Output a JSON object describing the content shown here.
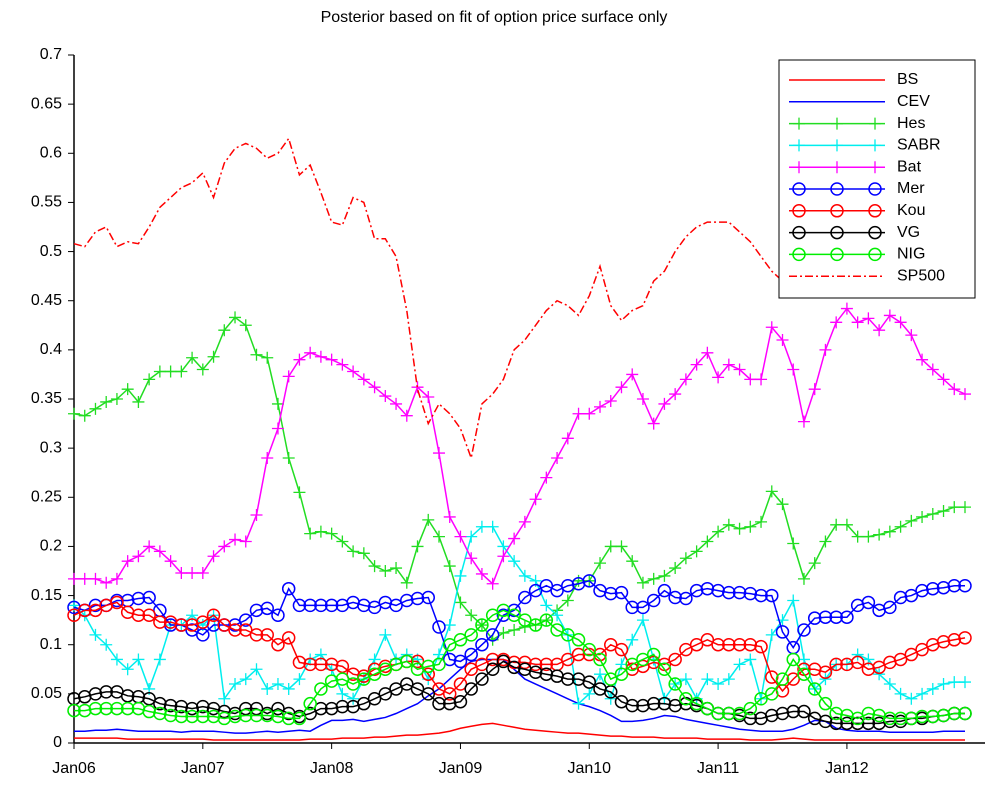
{
  "chart_data": {
    "type": "line",
    "title": "Posterior based on fit of option price surface only",
    "categories": [
      "Jan06",
      null,
      null,
      null,
      null,
      null,
      null,
      null,
      null,
      null,
      null,
      null,
      "Jan07",
      null,
      null,
      null,
      null,
      null,
      null,
      null,
      null,
      null,
      null,
      null,
      "Jan08",
      null,
      null,
      null,
      null,
      null,
      null,
      null,
      null,
      null,
      null,
      null,
      "Jan09",
      null,
      null,
      null,
      null,
      null,
      null,
      null,
      null,
      null,
      null,
      null,
      "Jan10",
      null,
      null,
      null,
      null,
      null,
      null,
      null,
      null,
      null,
      null,
      null,
      "Jan11",
      null,
      null,
      null,
      null,
      null,
      null,
      null,
      null,
      null,
      null,
      null,
      "Jan12",
      null,
      null,
      null,
      null,
      null,
      null,
      null,
      null,
      null,
      null,
      null
    ],
    "ylim": [
      0,
      0.7
    ],
    "yticks": [
      0,
      0.05,
      0.1,
      0.15,
      0.2,
      0.25,
      0.3,
      0.35,
      0.4,
      0.45,
      0.5,
      0.55,
      0.6,
      0.65,
      0.7
    ],
    "legend": "upper right",
    "series": [
      {
        "name": "BS",
        "color": "#ff0000",
        "marker": "none",
        "line": "solid",
        "values": [
          0.005,
          0.005,
          0.005,
          0.005,
          0.005,
          0.004,
          0.004,
          0.004,
          0.004,
          0.004,
          0.004,
          0.004,
          0.004,
          0.003,
          0.003,
          0.003,
          0.003,
          0.003,
          0.003,
          0.003,
          0.003,
          0.003,
          0.004,
          0.004,
          0.004,
          0.005,
          0.005,
          0.005,
          0.006,
          0.006,
          0.007,
          0.008,
          0.008,
          0.009,
          0.01,
          0.012,
          0.015,
          0.017,
          0.019,
          0.02,
          0.018,
          0.016,
          0.014,
          0.013,
          0.012,
          0.011,
          0.01,
          0.01,
          0.009,
          0.008,
          0.007,
          0.007,
          0.006,
          0.006,
          0.006,
          0.005,
          0.005,
          0.005,
          0.005,
          0.004,
          0.004,
          0.004,
          0.004,
          0.003,
          0.003,
          0.003,
          0.004,
          0.005,
          0.004,
          0.003,
          0.003,
          0.003,
          0.003,
          0.003,
          0.003,
          0.003,
          0.003,
          0.003,
          0.003,
          0.003,
          0.003,
          0.003,
          0.003,
          0.003
        ]
      },
      {
        "name": "CEV",
        "color": "#0000ff",
        "marker": "none",
        "line": "solid",
        "values": [
          0.012,
          0.012,
          0.013,
          0.013,
          0.014,
          0.013,
          0.012,
          0.012,
          0.012,
          0.012,
          0.011,
          0.012,
          0.012,
          0.012,
          0.011,
          0.01,
          0.01,
          0.011,
          0.012,
          0.011,
          0.012,
          0.013,
          0.012,
          0.018,
          0.023,
          0.023,
          0.024,
          0.022,
          0.024,
          0.026,
          0.03,
          0.035,
          0.04,
          0.048,
          0.055,
          0.065,
          0.075,
          0.083,
          0.085,
          0.085,
          0.085,
          0.075,
          0.065,
          0.06,
          0.055,
          0.05,
          0.045,
          0.04,
          0.037,
          0.033,
          0.028,
          0.022,
          0.022,
          0.023,
          0.025,
          0.028,
          0.027,
          0.024,
          0.022,
          0.02,
          0.018,
          0.016,
          0.014,
          0.013,
          0.012,
          0.012,
          0.012,
          0.014,
          0.018,
          0.023,
          0.022,
          0.015,
          0.013,
          0.012,
          0.012,
          0.012,
          0.011,
          0.011,
          0.011,
          0.011,
          0.011,
          0.012,
          0.012,
          0.012
        ]
      },
      {
        "name": "Hes",
        "color": "#22dd22",
        "marker": "plus",
        "line": "solid",
        "values": [
          0.335,
          0.333,
          0.34,
          0.347,
          0.35,
          0.36,
          0.347,
          0.37,
          0.378,
          0.378,
          0.378,
          0.392,
          0.38,
          0.393,
          0.42,
          0.433,
          0.425,
          0.395,
          0.392,
          0.345,
          0.29,
          0.255,
          0.213,
          0.215,
          0.213,
          0.205,
          0.195,
          0.193,
          0.18,
          0.175,
          0.178,
          0.163,
          0.2,
          0.227,
          0.21,
          0.18,
          0.143,
          0.13,
          0.12,
          0.105,
          0.112,
          0.115,
          0.118,
          0.12,
          0.125,
          0.135,
          0.145,
          0.165,
          0.165,
          0.183,
          0.2,
          0.2,
          0.185,
          0.163,
          0.167,
          0.17,
          0.178,
          0.188,
          0.195,
          0.205,
          0.215,
          0.222,
          0.218,
          0.22,
          0.225,
          0.256,
          0.243,
          0.203,
          0.167,
          0.183,
          0.205,
          0.222,
          0.222,
          0.21,
          0.21,
          0.212,
          0.215,
          0.22,
          0.226,
          0.23,
          0.233,
          0.236,
          0.24,
          0.24
        ]
      },
      {
        "name": "SABR",
        "color": "#00eeee",
        "marker": "plus",
        "line": "solid",
        "values": [
          0.14,
          0.13,
          0.11,
          0.1,
          0.085,
          0.075,
          0.085,
          0.055,
          0.085,
          0.12,
          0.12,
          0.13,
          0.12,
          0.13,
          0.045,
          0.06,
          0.065,
          0.075,
          0.055,
          0.06,
          0.055,
          0.065,
          0.085,
          0.09,
          0.075,
          0.05,
          0.045,
          0.065,
          0.085,
          0.11,
          0.085,
          0.09,
          0.085,
          0.065,
          0.09,
          0.12,
          0.17,
          0.21,
          0.22,
          0.22,
          0.2,
          0.185,
          0.17,
          0.165,
          0.14,
          0.13,
          0.11,
          0.04,
          0.05,
          0.07,
          0.045,
          0.08,
          0.105,
          0.125,
          0.085,
          0.045,
          0.06,
          0.065,
          0.045,
          0.065,
          0.06,
          0.065,
          0.08,
          0.085,
          0.045,
          0.11,
          0.125,
          0.145,
          0.085,
          0.055,
          0.065,
          0.08,
          0.08,
          0.09,
          0.085,
          0.07,
          0.06,
          0.05,
          0.045,
          0.05,
          0.055,
          0.06,
          0.062,
          0.062
        ]
      },
      {
        "name": "Bat",
        "color": "#ff00ff",
        "marker": "plus",
        "line": "solid",
        "values": [
          0.167,
          0.167,
          0.167,
          0.163,
          0.167,
          0.185,
          0.19,
          0.2,
          0.195,
          0.185,
          0.173,
          0.173,
          0.173,
          0.19,
          0.2,
          0.207,
          0.205,
          0.232,
          0.29,
          0.32,
          0.373,
          0.39,
          0.397,
          0.393,
          0.39,
          0.385,
          0.378,
          0.37,
          0.362,
          0.353,
          0.345,
          0.333,
          0.362,
          0.352,
          0.295,
          0.23,
          0.21,
          0.188,
          0.172,
          0.162,
          0.19,
          0.208,
          0.225,
          0.248,
          0.27,
          0.29,
          0.31,
          0.335,
          0.335,
          0.342,
          0.348,
          0.362,
          0.375,
          0.35,
          0.325,
          0.345,
          0.355,
          0.37,
          0.385,
          0.397,
          0.372,
          0.385,
          0.38,
          0.37,
          0.37,
          0.423,
          0.41,
          0.38,
          0.327,
          0.36,
          0.4,
          0.428,
          0.442,
          0.428,
          0.432,
          0.42,
          0.435,
          0.428,
          0.415,
          0.39,
          0.38,
          0.37,
          0.36,
          0.355
        ]
      },
      {
        "name": "Mer",
        "color": "#0000ff",
        "marker": "circle",
        "line": "solid",
        "values": [
          0.138,
          0.135,
          0.14,
          0.14,
          0.145,
          0.145,
          0.147,
          0.148,
          0.135,
          0.12,
          0.12,
          0.115,
          0.11,
          0.12,
          0.12,
          0.12,
          0.125,
          0.135,
          0.137,
          0.13,
          0.157,
          0.14,
          0.14,
          0.14,
          0.14,
          0.14,
          0.143,
          0.14,
          0.138,
          0.143,
          0.14,
          0.145,
          0.147,
          0.148,
          0.118,
          0.085,
          0.083,
          0.09,
          0.1,
          0.11,
          0.13,
          0.135,
          0.148,
          0.155,
          0.16,
          0.155,
          0.16,
          0.162,
          0.165,
          0.155,
          0.152,
          0.153,
          0.138,
          0.138,
          0.145,
          0.155,
          0.148,
          0.147,
          0.155,
          0.157,
          0.155,
          0.153,
          0.153,
          0.152,
          0.15,
          0.15,
          0.113,
          0.097,
          0.115,
          0.127,
          0.128,
          0.128,
          0.128,
          0.14,
          0.143,
          0.135,
          0.138,
          0.148,
          0.15,
          0.155,
          0.157,
          0.158,
          0.16,
          0.16
        ]
      },
      {
        "name": "Kou",
        "color": "#ff0000",
        "marker": "circle",
        "line": "solid",
        "values": [
          0.13,
          0.135,
          0.135,
          0.14,
          0.143,
          0.133,
          0.13,
          0.13,
          0.123,
          0.123,
          0.12,
          0.12,
          0.123,
          0.13,
          0.12,
          0.115,
          0.115,
          0.11,
          0.11,
          0.1,
          0.107,
          0.082,
          0.08,
          0.08,
          0.08,
          0.078,
          0.07,
          0.068,
          0.075,
          0.078,
          0.08,
          0.083,
          0.083,
          0.07,
          0.055,
          0.05,
          0.06,
          0.075,
          0.08,
          0.085,
          0.085,
          0.082,
          0.082,
          0.08,
          0.08,
          0.08,
          0.085,
          0.09,
          0.09,
          0.09,
          0.1,
          0.095,
          0.075,
          0.078,
          0.082,
          0.08,
          0.085,
          0.095,
          0.1,
          0.105,
          0.1,
          0.1,
          0.1,
          0.1,
          0.098,
          0.067,
          0.053,
          0.065,
          0.075,
          0.075,
          0.072,
          0.08,
          0.08,
          0.082,
          0.075,
          0.077,
          0.082,
          0.085,
          0.09,
          0.095,
          0.1,
          0.103,
          0.105,
          0.107
        ]
      },
      {
        "name": "VG",
        "color": "#000000",
        "marker": "circle",
        "line": "solid",
        "values": [
          0.045,
          0.047,
          0.05,
          0.052,
          0.052,
          0.048,
          0.047,
          0.045,
          0.04,
          0.038,
          0.037,
          0.035,
          0.037,
          0.035,
          0.032,
          0.03,
          0.035,
          0.035,
          0.03,
          0.035,
          0.03,
          0.027,
          0.03,
          0.035,
          0.035,
          0.037,
          0.037,
          0.04,
          0.045,
          0.05,
          0.055,
          0.06,
          0.055,
          0.05,
          0.04,
          0.04,
          0.042,
          0.055,
          0.065,
          0.075,
          0.083,
          0.077,
          0.075,
          0.072,
          0.07,
          0.068,
          0.065,
          0.065,
          0.062,
          0.055,
          0.052,
          0.042,
          0.038,
          0.038,
          0.04,
          0.04,
          0.038,
          0.04,
          0.038,
          0.035,
          0.03,
          0.03,
          0.028,
          0.025,
          0.025,
          0.028,
          0.03,
          0.032,
          0.032,
          0.025,
          0.022,
          0.02,
          0.02,
          0.02,
          0.02,
          0.02,
          0.022,
          0.022,
          0.025,
          0.025,
          0.027,
          0.028,
          0.03,
          0.03
        ]
      },
      {
        "name": "NIG",
        "color": "#00ee00",
        "marker": "circle",
        "line": "solid",
        "values": [
          0.033,
          0.033,
          0.035,
          0.035,
          0.035,
          0.035,
          0.035,
          0.032,
          0.03,
          0.028,
          0.027,
          0.027,
          0.027,
          0.027,
          0.025,
          0.027,
          0.028,
          0.028,
          0.028,
          0.027,
          0.025,
          0.025,
          0.04,
          0.055,
          0.063,
          0.065,
          0.06,
          0.065,
          0.07,
          0.075,
          0.08,
          0.083,
          0.075,
          0.078,
          0.08,
          0.1,
          0.105,
          0.11,
          0.12,
          0.13,
          0.135,
          0.13,
          0.125,
          0.12,
          0.125,
          0.115,
          0.11,
          0.105,
          0.095,
          0.085,
          0.065,
          0.07,
          0.08,
          0.085,
          0.09,
          0.075,
          0.06,
          0.045,
          0.04,
          0.035,
          0.03,
          0.03,
          0.03,
          0.035,
          0.045,
          0.05,
          0.065,
          0.085,
          0.07,
          0.055,
          0.04,
          0.03,
          0.028,
          0.025,
          0.03,
          0.028,
          0.025,
          0.025,
          0.025,
          0.027,
          0.027,
          0.028,
          0.03,
          0.03
        ]
      },
      {
        "name": "SP500",
        "color": "#ff0000",
        "marker": "none",
        "line": "dashdot",
        "values": [
          0.508,
          0.505,
          0.52,
          0.525,
          0.505,
          0.51,
          0.508,
          0.525,
          0.545,
          0.555,
          0.565,
          0.57,
          0.58,
          0.555,
          0.59,
          0.605,
          0.61,
          0.605,
          0.595,
          0.6,
          0.615,
          0.578,
          0.588,
          0.56,
          0.53,
          0.527,
          0.555,
          0.55,
          0.513,
          0.513,
          0.495,
          0.44,
          0.36,
          0.325,
          0.345,
          0.335,
          0.32,
          0.29,
          0.345,
          0.355,
          0.37,
          0.4,
          0.41,
          0.425,
          0.44,
          0.45,
          0.445,
          0.435,
          0.455,
          0.485,
          0.445,
          0.43,
          0.44,
          0.445,
          0.47,
          0.48,
          0.5,
          0.515,
          0.525,
          0.53,
          0.53,
          0.53,
          0.52,
          0.51,
          0.495,
          0.48,
          0.47,
          0.47,
          0.48,
          0.49,
          0.5,
          0.505,
          0.51,
          0.52,
          0.525,
          0.52,
          0.51,
          0.515,
          0.525,
          0.535,
          0.54,
          0.545,
          0.54,
          0.545
        ]
      }
    ]
  }
}
